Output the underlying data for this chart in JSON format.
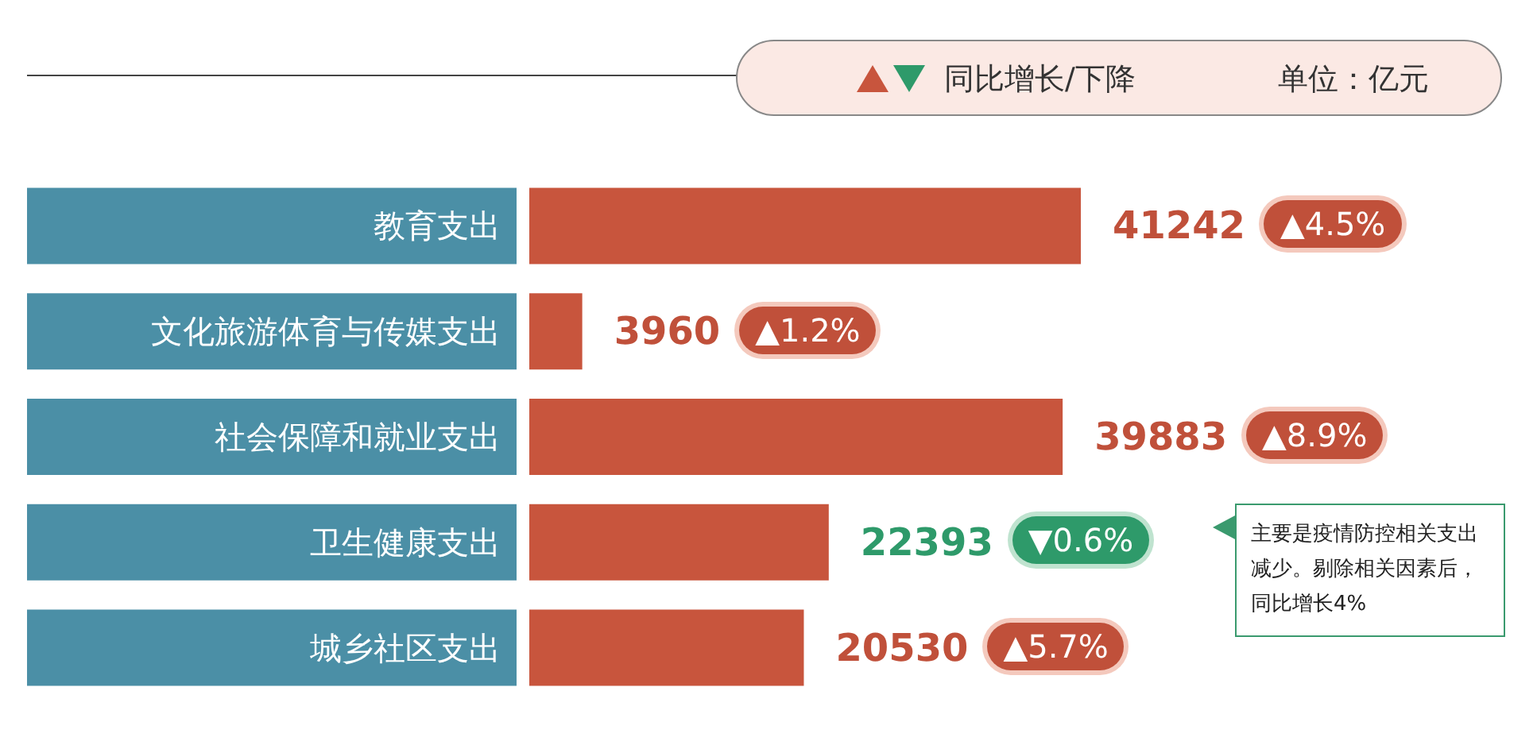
{
  "chart_data": {
    "type": "bar",
    "orientation": "horizontal",
    "data_labels": true,
    "categories": [
      "教育支出",
      "文化旅游体育与传媒支出",
      "社会保障和就业支出",
      "卫生健康支出",
      "城乡社区支出"
    ],
    "values": [
      41242,
      3960,
      39883,
      22393,
      20530
    ],
    "color": "#c8553d",
    "annotations": [
      "同比增长/下降",
      "单位：亿元",
      "主要是疫情防控相关支出减少。剔除相关因素后，同比增长4%",
      "▲4.5%",
      "▲1.2%",
      "▲8.9%",
      "▼0.6%",
      "▲5.7%"
    ]
  }
}
